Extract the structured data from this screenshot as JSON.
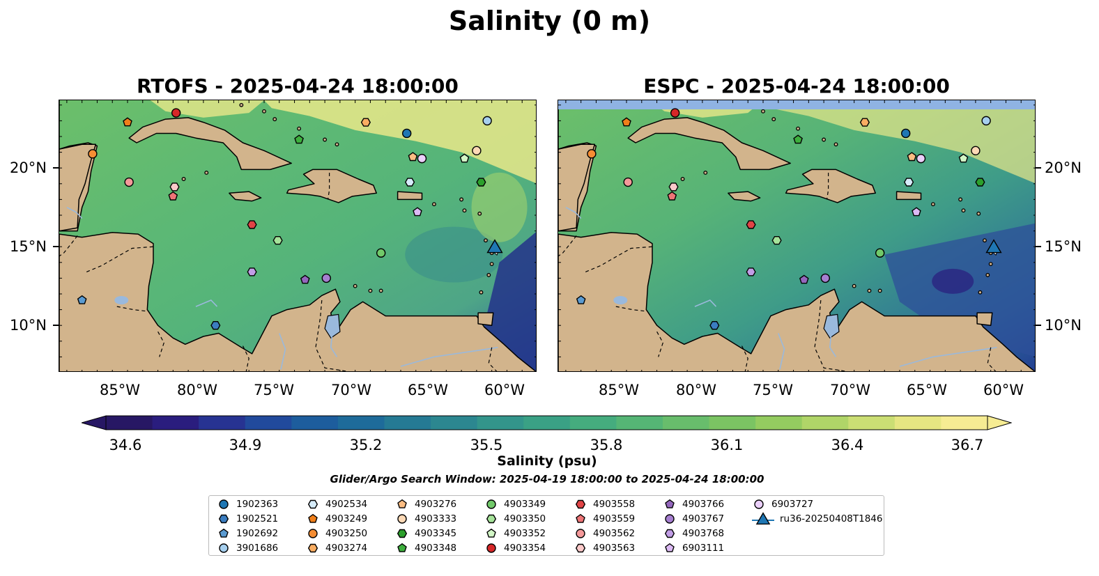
{
  "figure": {
    "title": "Salinity (0 m)",
    "left_panel_title": "RTOFS - 2025-04-24 18:00:00",
    "right_panel_title": "ESPC - 2025-04-24 18:00:00",
    "lat_labels": [
      "20°N",
      "15°N",
      "10°N"
    ],
    "lon_labels": [
      "85°W",
      "80°W",
      "75°W",
      "70°W",
      "65°W",
      "60°W"
    ],
    "colorbar": {
      "ticks": [
        "34.6",
        "34.9",
        "35.2",
        "35.5",
        "35.8",
        "36.1",
        "36.4",
        "36.7"
      ],
      "label": "Salinity (psu)",
      "colors": [
        "#271764",
        "#2a1d7e",
        "#273392",
        "#214a9c",
        "#1d5d9d",
        "#1e6b9a",
        "#257a94",
        "#2c8790",
        "#33958b",
        "#3aa185",
        "#45ac7e",
        "#55b575",
        "#68bd6c",
        "#7bc463",
        "#94cc60",
        "#b0d568",
        "#cbde74",
        "#e6e682",
        "#f6ec93"
      ]
    },
    "search_window": "Glider/Argo Search Window: 2025-04-19 18:00:00 to 2025-04-24 18:00:00"
  },
  "colors": {
    "land": "#d2b48c",
    "lake": "#9ab9dc",
    "ocean_mid": "#5cb875",
    "ocean_high": "#e9e78a",
    "ocean_low": "#261c6e"
  },
  "legend": [
    {
      "label": "1902363",
      "marker": "circle",
      "color": "#1f77b4"
    },
    {
      "label": "1902521",
      "marker": "hexagon",
      "color": "#3b7dc0"
    },
    {
      "label": "1902692",
      "marker": "pentagon",
      "color": "#5b9bd1"
    },
    {
      "label": "3901686",
      "marker": "circle",
      "color": "#a6cfee"
    },
    {
      "label": "4902534",
      "marker": "hexagon",
      "color": "#d6ecfa"
    },
    {
      "label": "4903249",
      "marker": "pentagon",
      "color": "#f07f1a"
    },
    {
      "label": "4903250",
      "marker": "circle",
      "color": "#f58d33"
    },
    {
      "label": "4903274",
      "marker": "hexagon",
      "color": "#f9ad62"
    },
    {
      "label": "4903276",
      "marker": "pentagon",
      "color": "#fbbd83"
    },
    {
      "label": "4903333",
      "marker": "circle",
      "color": "#fdd9b6"
    },
    {
      "label": "4903345",
      "marker": "hexagon",
      "color": "#2ca02c"
    },
    {
      "label": "4903348",
      "marker": "pentagon",
      "color": "#3daf3d"
    },
    {
      "label": "4903349",
      "marker": "circle",
      "color": "#71c96a"
    },
    {
      "label": "4903350",
      "marker": "hexagon",
      "color": "#a6e39a"
    },
    {
      "label": "4903352",
      "marker": "pentagon",
      "color": "#d2f6c6"
    },
    {
      "label": "4903354",
      "marker": "circle",
      "color": "#d62728"
    },
    {
      "label": "4903558",
      "marker": "hexagon",
      "color": "#e04446"
    },
    {
      "label": "4903559",
      "marker": "pentagon",
      "color": "#ee7577"
    },
    {
      "label": "4903562",
      "marker": "circle",
      "color": "#f4999a"
    },
    {
      "label": "4903563",
      "marker": "hexagon",
      "color": "#fbcaca"
    },
    {
      "label": "4903766",
      "marker": "pentagon",
      "color": "#9467bd"
    },
    {
      "label": "4903767",
      "marker": "circle",
      "color": "#a67fd0"
    },
    {
      "label": "4903768",
      "marker": "hexagon",
      "color": "#c29ee6"
    },
    {
      "label": "6903111",
      "marker": "pentagon",
      "color": "#dcbaf4"
    },
    {
      "label": "6903727",
      "marker": "circle",
      "color": "#ebd0fb"
    },
    {
      "label": "ru36-20250408T1846",
      "marker": "triangle",
      "color": "#1f77b4"
    }
  ],
  "floats": [
    {
      "id": "1902363",
      "lon": -66.6,
      "lat": 22.2
    },
    {
      "id": "1902521",
      "lon": -79.2,
      "lat": 10.0
    },
    {
      "id": "1902692",
      "lon": -88.0,
      "lat": 11.6
    },
    {
      "id": "3901686",
      "lon": -61.3,
      "lat": 23.0
    },
    {
      "id": "4902534",
      "lon": -66.4,
      "lat": 19.1
    },
    {
      "id": "4903249",
      "lon": -85.0,
      "lat": 22.9
    },
    {
      "id": "4903250",
      "lon": -87.3,
      "lat": 20.9
    },
    {
      "id": "4903274",
      "lon": -69.3,
      "lat": 22.9
    },
    {
      "id": "4903276",
      "lon": -66.2,
      "lat": 20.7
    },
    {
      "id": "4903333",
      "lon": -62.0,
      "lat": 21.1
    },
    {
      "id": "4903345",
      "lon": -61.7,
      "lat": 19.1
    },
    {
      "id": "4903348",
      "lon": -73.7,
      "lat": 21.8
    },
    {
      "id": "4903349",
      "lon": -68.3,
      "lat": 14.6
    },
    {
      "id": "4903350",
      "lon": -75.1,
      "lat": 15.4
    },
    {
      "id": "4903352",
      "lon": -62.8,
      "lat": 20.6
    },
    {
      "id": "4903354",
      "lon": -81.8,
      "lat": 23.5
    },
    {
      "id": "4903558",
      "lon": -76.8,
      "lat": 16.4
    },
    {
      "id": "4903559",
      "lon": -82.0,
      "lat": 18.2
    },
    {
      "id": "4903562",
      "lon": -84.9,
      "lat": 19.1
    },
    {
      "id": "4903563",
      "lon": -81.9,
      "lat": 18.8
    },
    {
      "id": "4903766",
      "lon": -73.3,
      "lat": 12.9
    },
    {
      "id": "4903767",
      "lon": -71.9,
      "lat": 13.0
    },
    {
      "id": "4903768",
      "lon": -76.8,
      "lat": 13.4
    },
    {
      "id": "6903111",
      "lon": -65.9,
      "lat": 17.2
    },
    {
      "id": "6903727",
      "lon": -65.6,
      "lat": 20.6
    },
    {
      "id": "ru36-20250408T1846",
      "lon": -60.8,
      "lat": 15.0
    }
  ]
}
